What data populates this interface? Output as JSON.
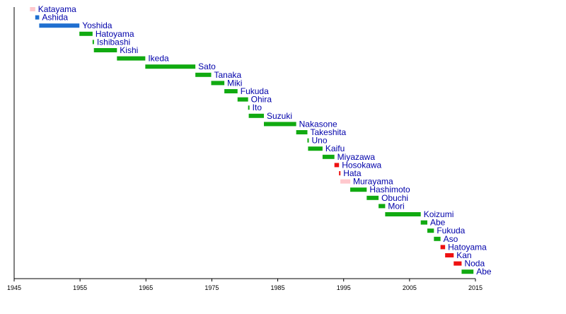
{
  "chart_data": {
    "type": "gantt",
    "title": "",
    "xlabel": "",
    "ylabel": "",
    "xlim": [
      1945,
      2015
    ],
    "xticks": [
      "1945",
      "1955",
      "1965",
      "1975",
      "1985",
      "1995",
      "2005",
      "2015"
    ],
    "party_colors": {
      "Democratic": "#cc0000",
      "Democratic Liberal": "#0070c0",
      "JSP": "#ffb3bf",
      "LDP": "#00aa00",
      "Renewal": "#ff0000"
    },
    "terms": [
      {
        "name": "Katayama",
        "start": 1947.4,
        "end": 1948.2,
        "color": "#ffc8cd"
      },
      {
        "name": "Ashida",
        "start": 1948.2,
        "end": 1948.8,
        "color": "#1f6fd0"
      },
      {
        "name": "Yoshida",
        "start": 1948.8,
        "end": 1954.9,
        "color": "#1f6fd0"
      },
      {
        "name": "Hatoyama",
        "start": 1954.9,
        "end": 1956.9,
        "color": "#11aa11"
      },
      {
        "name": "Ishibashi",
        "start": 1956.9,
        "end": 1957.1,
        "color": "#11aa11"
      },
      {
        "name": "Kishi",
        "start": 1957.1,
        "end": 1960.6,
        "color": "#11aa11"
      },
      {
        "name": "Ikeda",
        "start": 1960.6,
        "end": 1964.9,
        "color": "#11aa11"
      },
      {
        "name": "Sato",
        "start": 1964.9,
        "end": 1972.5,
        "color": "#11aa11"
      },
      {
        "name": "Tanaka",
        "start": 1972.5,
        "end": 1974.9,
        "color": "#11aa11"
      },
      {
        "name": "Miki",
        "start": 1974.9,
        "end": 1976.9,
        "color": "#11aa11"
      },
      {
        "name": "Fukuda",
        "start": 1976.9,
        "end": 1978.9,
        "color": "#11aa11"
      },
      {
        "name": "Ohira",
        "start": 1978.9,
        "end": 1980.5,
        "color": "#11aa11"
      },
      {
        "name": "Ito",
        "start": 1980.5,
        "end": 1980.6,
        "color": "#11aa11"
      },
      {
        "name": "Suzuki",
        "start": 1980.6,
        "end": 1982.9,
        "color": "#11aa11"
      },
      {
        "name": "Nakasone",
        "start": 1982.9,
        "end": 1987.8,
        "color": "#11aa11"
      },
      {
        "name": "Takeshita",
        "start": 1987.8,
        "end": 1989.5,
        "color": "#11aa11"
      },
      {
        "name": "Uno",
        "start": 1989.5,
        "end": 1989.6,
        "color": "#11aa11"
      },
      {
        "name": "Kaifu",
        "start": 1989.6,
        "end": 1991.8,
        "color": "#11aa11"
      },
      {
        "name": "Miyazawa",
        "start": 1991.8,
        "end": 1993.6,
        "color": "#11aa11"
      },
      {
        "name": "Hosokawa",
        "start": 1993.6,
        "end": 1994.3,
        "color": "#ee1111"
      },
      {
        "name": "Hata",
        "start": 1994.3,
        "end": 1994.5,
        "color": "#ee1111"
      },
      {
        "name": "Murayama",
        "start": 1994.5,
        "end": 1996.0,
        "color": "#ffc8cd"
      },
      {
        "name": "Hashimoto",
        "start": 1996.0,
        "end": 1998.5,
        "color": "#11aa11"
      },
      {
        "name": "Obuchi",
        "start": 1998.5,
        "end": 2000.3,
        "color": "#11aa11"
      },
      {
        "name": "Mori",
        "start": 2000.3,
        "end": 2001.3,
        "color": "#11aa11"
      },
      {
        "name": "Koizumi",
        "start": 2001.3,
        "end": 2006.7,
        "color": "#11aa11"
      },
      {
        "name": "Abe",
        "start": 2006.7,
        "end": 2007.7,
        "color": "#11aa11"
      },
      {
        "name": "Fukuda",
        "start": 2007.7,
        "end": 2008.7,
        "color": "#11aa11"
      },
      {
        "name": "Aso",
        "start": 2008.7,
        "end": 2009.7,
        "color": "#11aa11"
      },
      {
        "name": "Hatoyama",
        "start": 2009.7,
        "end": 2010.4,
        "color": "#ee1111"
      },
      {
        "name": "Kan",
        "start": 2010.4,
        "end": 2011.7,
        "color": "#ee1111"
      },
      {
        "name": "Noda",
        "start": 2011.7,
        "end": 2012.9,
        "color": "#ee1111"
      },
      {
        "name": "Abe",
        "start": 2012.9,
        "end": 2014.7,
        "color": "#11aa11"
      }
    ]
  }
}
